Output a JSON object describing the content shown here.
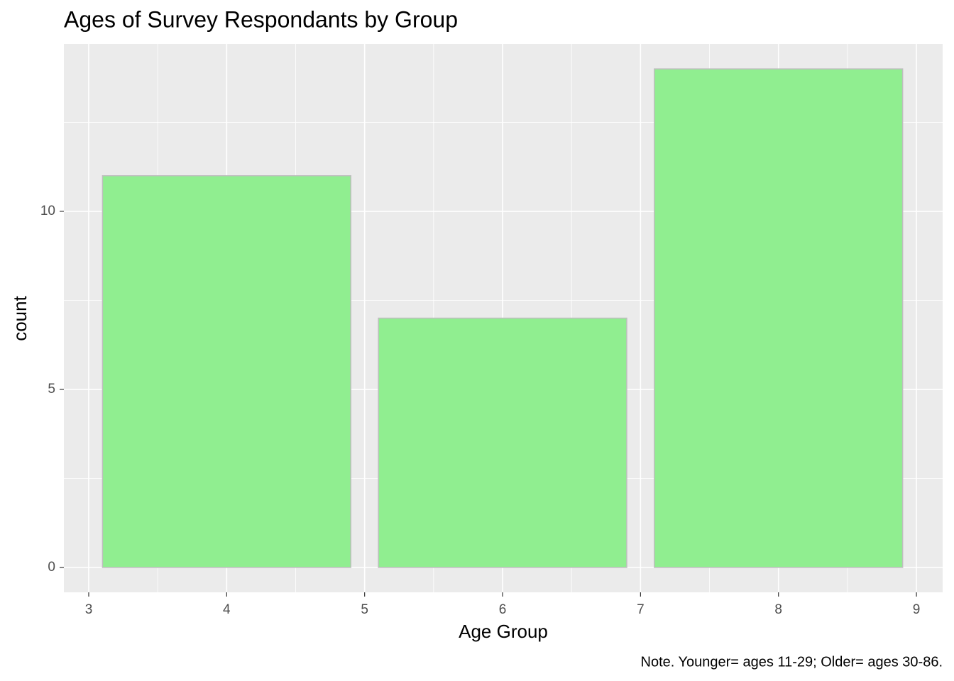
{
  "chart_data": {
    "type": "bar",
    "title": "Ages of Survey Respondants by Group",
    "x_label": "Age Group",
    "y_label": "count",
    "caption": "Note. Younger= ages 11-29; Older= ages 30-86.",
    "x": [
      4,
      6,
      8
    ],
    "values": [
      11,
      7,
      14
    ],
    "color": "#90ee90",
    "edge_color": "#bebebe",
    "xlim": [
      2.82,
      9.19
    ],
    "xticks": [
      3,
      4,
      5,
      6,
      7,
      8,
      9
    ],
    "ylim": [
      -0.7,
      14.7
    ],
    "yticks": [
      0,
      5,
      10
    ],
    "grid": true
  }
}
